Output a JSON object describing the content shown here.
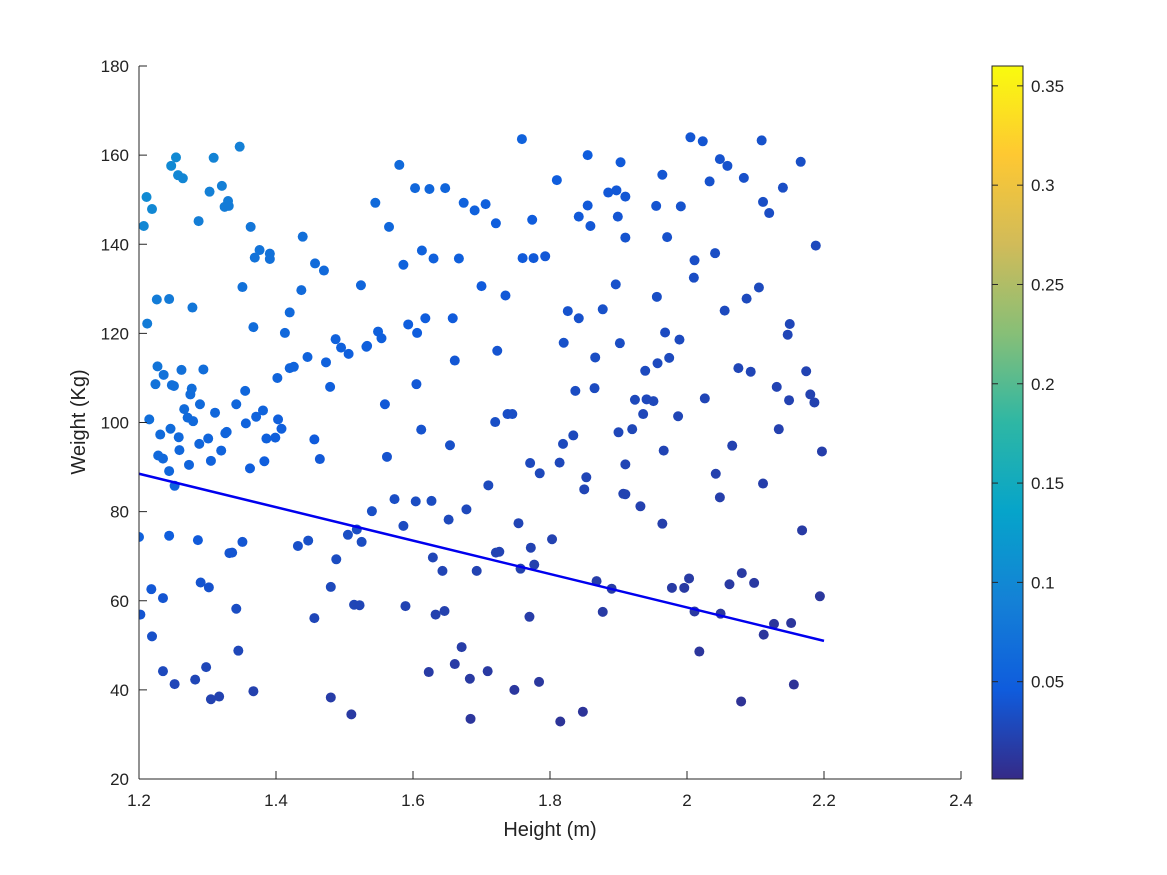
{
  "chart_data": {
    "type": "scatter",
    "title": "",
    "xlabel": "Height (m)",
    "ylabel": "Weight (Kg)",
    "xlim": [
      1.2,
      2.4
    ],
    "ylim": [
      20,
      180
    ],
    "x_ticks": [
      "1.2",
      "1.4",
      "1.6",
      "1.8",
      "2",
      "2.2",
      "2.4"
    ],
    "y_ticks": [
      "20",
      "40",
      "60",
      "80",
      "100",
      "120",
      "140",
      "160",
      "180"
    ],
    "grid": false,
    "legend": "none",
    "colorbar": {
      "range": [
        0.001,
        0.36
      ],
      "ticks": [
        "0.05",
        "0.1",
        "0.15",
        "0.2",
        "0.25",
        "0.3",
        "0.35"
      ],
      "colormap": "parula"
    },
    "point_color_value": "weight / height^2 / 1000",
    "fit_line": {
      "x": [
        1.2,
        2.2
      ],
      "y": [
        88.5,
        51.0
      ],
      "color": "#0000ee"
    },
    "points": [
      [
        1.2,
        74.3
      ],
      [
        1.207,
        144.1
      ],
      [
        1.211,
        150.6
      ],
      [
        1.212,
        122.2
      ],
      [
        1.218,
        62.6
      ],
      [
        1.219,
        147.9
      ],
      [
        1.219,
        52.0
      ],
      [
        1.226,
        127.6
      ],
      [
        1.227,
        112.6
      ],
      [
        1.235,
        60.6
      ],
      [
        1.235,
        44.2
      ],
      [
        1.235,
        91.9
      ],
      [
        1.244,
        127.7
      ],
      [
        1.244,
        74.6
      ],
      [
        1.247,
        157.6
      ],
      [
        1.248,
        108.4
      ],
      [
        1.252,
        41.3
      ],
      [
        1.252,
        85.8
      ],
      [
        1.254,
        159.5
      ],
      [
        1.257,
        155.5
      ],
      [
        1.264,
        154.8
      ],
      [
        1.271,
        101.1
      ],
      [
        1.275,
        106.3
      ],
      [
        1.278,
        125.8
      ],
      [
        1.282,
        42.3
      ],
      [
        1.286,
        73.6
      ],
      [
        1.287,
        145.2
      ],
      [
        1.29,
        64.1
      ],
      [
        1.298,
        45.1
      ],
      [
        1.302,
        63.0
      ],
      [
        1.303,
        151.8
      ],
      [
        1.305,
        37.9
      ],
      [
        1.309,
        159.4
      ],
      [
        1.317,
        38.5
      ],
      [
        1.321,
        153.1
      ],
      [
        1.325,
        148.4
      ],
      [
        1.326,
        97.6
      ],
      [
        1.33,
        149.7
      ],
      [
        1.331,
        148.6
      ],
      [
        1.332,
        70.7
      ],
      [
        1.336,
        70.8
      ],
      [
        1.342,
        58.2
      ],
      [
        1.345,
        48.8
      ],
      [
        1.347,
        161.9
      ],
      [
        1.351,
        73.2
      ],
      [
        1.351,
        130.4
      ],
      [
        1.355,
        107.1
      ],
      [
        1.362,
        89.7
      ],
      [
        1.363,
        143.9
      ],
      [
        1.367,
        39.7
      ],
      [
        1.367,
        121.4
      ],
      [
        1.369,
        137.0
      ],
      [
        1.376,
        138.7
      ],
      [
        1.381,
        102.7
      ],
      [
        1.383,
        91.3
      ],
      [
        1.391,
        136.7
      ],
      [
        1.391,
        137.9
      ],
      [
        1.399,
        96.6
      ],
      [
        1.402,
        110.0
      ],
      [
        1.408,
        98.6
      ],
      [
        1.413,
        120.1
      ],
      [
        1.42,
        112.2
      ],
      [
        1.42,
        124.7
      ],
      [
        1.426,
        112.5
      ],
      [
        1.432,
        72.3
      ],
      [
        1.437,
        129.7
      ],
      [
        1.439,
        141.7
      ],
      [
        1.446,
        114.7
      ],
      [
        1.447,
        73.5
      ],
      [
        1.456,
        96.2
      ],
      [
        1.456,
        56.1
      ],
      [
        1.457,
        135.7
      ],
      [
        1.464,
        91.8
      ],
      [
        1.47,
        134.1
      ],
      [
        1.473,
        113.5
      ],
      [
        1.479,
        108.0
      ],
      [
        1.48,
        63.1
      ],
      [
        1.48,
        38.3
      ],
      [
        1.487,
        118.7
      ],
      [
        1.488,
        69.3
      ],
      [
        1.495,
        116.8
      ],
      [
        1.505,
        74.8
      ],
      [
        1.506,
        115.4
      ],
      [
        1.51,
        34.5
      ],
      [
        1.514,
        59.1
      ],
      [
        1.518,
        76.0
      ],
      [
        1.522,
        59.0
      ],
      [
        1.524,
        130.8
      ],
      [
        1.525,
        73.2
      ],
      [
        1.532,
        117.0
      ],
      [
        1.533,
        117.2
      ],
      [
        1.54,
        80.1
      ],
      [
        1.545,
        149.3
      ],
      [
        1.549,
        120.4
      ],
      [
        1.554,
        118.9
      ],
      [
        1.559,
        104.1
      ],
      [
        1.562,
        92.3
      ],
      [
        1.565,
        143.9
      ],
      [
        1.573,
        82.8
      ],
      [
        1.58,
        157.8
      ],
      [
        1.586,
        135.4
      ],
      [
        1.586,
        76.8
      ],
      [
        1.589,
        58.8
      ],
      [
        1.593,
        122.0
      ],
      [
        1.603,
        152.6
      ],
      [
        1.604,
        82.3
      ],
      [
        1.605,
        108.6
      ],
      [
        1.606,
        120.1
      ],
      [
        1.612,
        98.4
      ],
      [
        1.613,
        138.6
      ],
      [
        1.618,
        123.4
      ],
      [
        1.623,
        44.0
      ],
      [
        1.624,
        152.4
      ],
      [
        1.627,
        82.4
      ],
      [
        1.629,
        69.7
      ],
      [
        1.63,
        136.8
      ],
      [
        1.633,
        56.9
      ],
      [
        1.643,
        66.7
      ],
      [
        1.646,
        57.7
      ],
      [
        1.647,
        152.6
      ],
      [
        1.652,
        78.2
      ],
      [
        1.654,
        94.9
      ],
      [
        1.658,
        123.4
      ],
      [
        1.661,
        113.9
      ],
      [
        1.661,
        45.8
      ],
      [
        1.667,
        136.8
      ],
      [
        1.671,
        49.6
      ],
      [
        1.674,
        149.3
      ],
      [
        1.678,
        80.5
      ],
      [
        1.683,
        42.5
      ],
      [
        1.684,
        33.5
      ],
      [
        1.69,
        147.6
      ],
      [
        1.693,
        66.7
      ],
      [
        1.7,
        130.6
      ],
      [
        1.706,
        149.0
      ],
      [
        1.709,
        44.2
      ],
      [
        1.71,
        85.9
      ],
      [
        1.72,
        100.1
      ],
      [
        1.721,
        70.8
      ],
      [
        1.721,
        144.7
      ],
      [
        1.723,
        116.1
      ],
      [
        1.726,
        71.0
      ],
      [
        1.735,
        128.5
      ],
      [
        1.738,
        101.9
      ],
      [
        1.745,
        101.9
      ],
      [
        1.748,
        40.0
      ],
      [
        1.754,
        77.4
      ],
      [
        1.757,
        67.2
      ],
      [
        1.759,
        163.6
      ],
      [
        1.76,
        136.9
      ],
      [
        1.77,
        56.4
      ],
      [
        1.771,
        90.9
      ],
      [
        1.772,
        71.9
      ],
      [
        1.774,
        145.5
      ],
      [
        1.776,
        136.9
      ],
      [
        1.777,
        68.1
      ],
      [
        1.784,
        41.8
      ],
      [
        1.785,
        88.6
      ],
      [
        1.793,
        137.3
      ],
      [
        1.803,
        73.8
      ],
      [
        1.81,
        154.4
      ],
      [
        1.814,
        91.0
      ],
      [
        1.815,
        32.9
      ],
      [
        1.819,
        95.2
      ],
      [
        1.82,
        117.9
      ],
      [
        1.826,
        125.0
      ],
      [
        1.834,
        97.1
      ],
      [
        1.837,
        107.1
      ],
      [
        1.842,
        146.2
      ],
      [
        1.842,
        123.4
      ],
      [
        1.848,
        35.1
      ],
      [
        1.85,
        85.0
      ],
      [
        1.853,
        87.7
      ],
      [
        1.855,
        160.0
      ],
      [
        1.855,
        148.7
      ],
      [
        1.859,
        144.1
      ],
      [
        1.865,
        107.7
      ],
      [
        1.866,
        114.6
      ],
      [
        1.868,
        64.4
      ],
      [
        1.877,
        125.4
      ],
      [
        1.877,
        57.5
      ],
      [
        1.885,
        151.6
      ],
      [
        1.89,
        62.7
      ],
      [
        1.896,
        131.0
      ],
      [
        1.897,
        152.1
      ],
      [
        1.899,
        146.2
      ],
      [
        1.9,
        97.8
      ],
      [
        1.902,
        117.8
      ],
      [
        1.903,
        158.4
      ],
      [
        1.907,
        84.0
      ],
      [
        1.91,
        90.6
      ],
      [
        1.91,
        141.5
      ],
      [
        1.91,
        83.9
      ],
      [
        1.91,
        150.7
      ],
      [
        1.92,
        98.5
      ],
      [
        1.924,
        105.1
      ],
      [
        1.932,
        81.2
      ],
      [
        1.936,
        101.9
      ],
      [
        1.939,
        111.6
      ],
      [
        1.941,
        105.2
      ],
      [
        1.951,
        104.8
      ],
      [
        1.955,
        148.6
      ],
      [
        1.956,
        128.2
      ],
      [
        1.957,
        113.3
      ],
      [
        1.964,
        155.6
      ],
      [
        1.964,
        77.3
      ],
      [
        1.966,
        93.7
      ],
      [
        1.968,
        120.2
      ],
      [
        1.971,
        141.6
      ],
      [
        1.974,
        114.5
      ],
      [
        1.978,
        62.9
      ],
      [
        1.987,
        101.4
      ],
      [
        1.989,
        118.6
      ],
      [
        1.991,
        148.5
      ],
      [
        1.996,
        62.9
      ],
      [
        2.003,
        65.0
      ],
      [
        2.005,
        164.0
      ],
      [
        2.01,
        132.5
      ],
      [
        2.011,
        136.4
      ],
      [
        2.011,
        57.6
      ],
      [
        2.018,
        48.6
      ],
      [
        2.023,
        163.1
      ],
      [
        2.026,
        105.4
      ],
      [
        2.033,
        154.1
      ],
      [
        2.041,
        138.0
      ],
      [
        2.042,
        88.5
      ],
      [
        2.048,
        83.2
      ],
      [
        2.048,
        159.1
      ],
      [
        2.049,
        57.1
      ],
      [
        2.055,
        125.1
      ],
      [
        2.059,
        157.6
      ],
      [
        2.062,
        63.7
      ],
      [
        2.066,
        94.8
      ],
      [
        2.075,
        112.2
      ],
      [
        2.079,
        37.4
      ],
      [
        2.08,
        66.2
      ],
      [
        2.083,
        154.9
      ],
      [
        2.087,
        127.8
      ],
      [
        2.093,
        111.4
      ],
      [
        2.098,
        64.0
      ],
      [
        2.105,
        130.3
      ],
      [
        2.109,
        163.3
      ],
      [
        2.111,
        149.5
      ],
      [
        2.111,
        86.3
      ],
      [
        2.112,
        52.4
      ],
      [
        2.12,
        147.0
      ],
      [
        2.127,
        54.8
      ],
      [
        2.131,
        108.0
      ],
      [
        2.134,
        98.5
      ],
      [
        2.14,
        152.7
      ],
      [
        2.147,
        119.7
      ],
      [
        2.149,
        105.0
      ],
      [
        2.15,
        122.1
      ],
      [
        2.152,
        55.0
      ],
      [
        2.156,
        41.2
      ],
      [
        2.166,
        158.5
      ],
      [
        2.168,
        75.8
      ],
      [
        2.174,
        111.5
      ],
      [
        2.18,
        106.3
      ],
      [
        2.186,
        104.5
      ],
      [
        2.188,
        139.7
      ],
      [
        2.194,
        61.0
      ],
      [
        2.197,
        93.5
      ],
      [
        1.202,
        56.9
      ],
      [
        1.215,
        100.7
      ],
      [
        1.231,
        97.3
      ],
      [
        1.246,
        98.6
      ],
      [
        1.258,
        96.7
      ],
      [
        1.266,
        103.0
      ],
      [
        1.279,
        100.3
      ],
      [
        1.289,
        104.1
      ],
      [
        1.301,
        96.4
      ],
      [
        1.224,
        108.6
      ],
      [
        1.236,
        110.7
      ],
      [
        1.251,
        108.2
      ],
      [
        1.262,
        111.8
      ],
      [
        1.277,
        107.6
      ],
      [
        1.294,
        111.9
      ],
      [
        1.311,
        102.2
      ],
      [
        1.328,
        97.9
      ],
      [
        1.342,
        104.1
      ],
      [
        1.356,
        99.8
      ],
      [
        1.371,
        101.3
      ],
      [
        1.386,
        96.4
      ],
      [
        1.403,
        100.7
      ],
      [
        1.228,
        92.6
      ],
      [
        1.244,
        89.1
      ],
      [
        1.259,
        93.8
      ],
      [
        1.273,
        90.5
      ],
      [
        1.288,
        95.2
      ],
      [
        1.305,
        91.4
      ],
      [
        1.32,
        93.7
      ]
    ]
  }
}
